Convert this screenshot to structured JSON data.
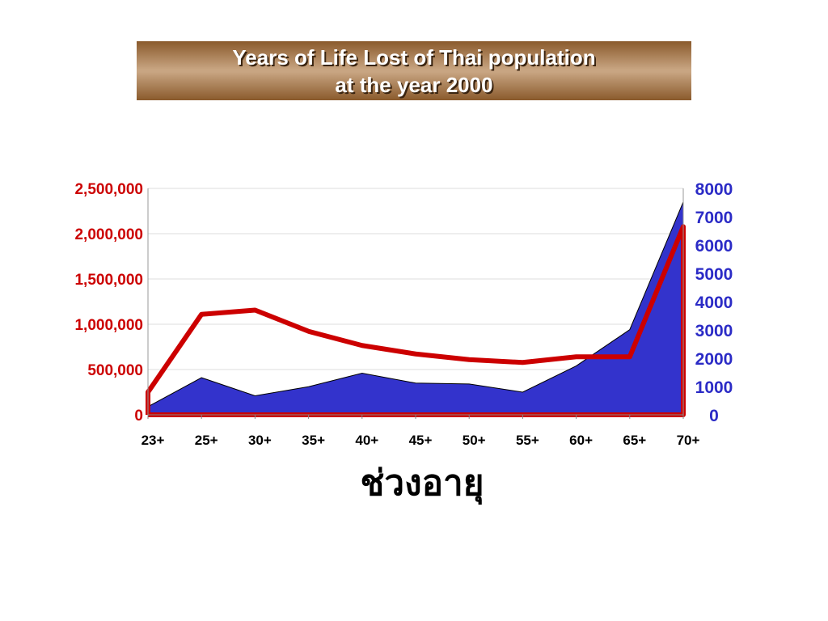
{
  "title": {
    "line1": "Years of Life Lost of Thai population",
    "line2": "at the year 2000"
  },
  "chart_data": {
    "type": "line",
    "title": "Years of Life Lost of Thai population at the year 2000",
    "xlabel": "ช่วงอายุ",
    "ylabel": "",
    "categories": [
      "23+",
      "25+",
      "30+",
      "35+",
      "40+",
      "45+",
      "50+",
      "55+",
      "60+",
      "65+",
      "70+"
    ],
    "grid": true,
    "legend": "none",
    "y_left": {
      "range": [
        0,
        2500000
      ],
      "ticks": [
        "0",
        "500,000",
        "1,000,000",
        "1,500,000",
        "2,000,000",
        "2,500,000"
      ],
      "color": "#cc0000"
    },
    "y_right": {
      "range": [
        0,
        8000
      ],
      "ticks": [
        "0",
        "1000",
        "2000",
        "3000",
        "4000",
        "5000",
        "6000",
        "7000",
        "8000"
      ],
      "color": "#2b2bc6"
    },
    "series": [
      {
        "type": "area",
        "axis": "left",
        "color": "#3333cc",
        "values": [
          90000,
          410000,
          210000,
          310000,
          460000,
          350000,
          340000,
          250000,
          540000,
          940000,
          2350000
        ]
      },
      {
        "type": "line",
        "axis": "right",
        "color": "#cc0000",
        "values": [
          800,
          3550,
          3700,
          2950,
          2450,
          2150,
          1950,
          1850,
          2050,
          2050,
          6650
        ]
      }
    ]
  }
}
